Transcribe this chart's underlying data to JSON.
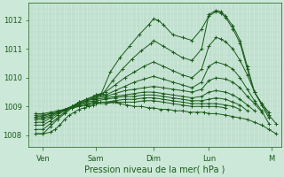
{
  "title": "",
  "xlabel": "Pression niveau de la mer( hPa )",
  "bg_color": "#cce8d8",
  "grid_color_v": "#aacfbe",
  "grid_color_h": "#b8d8c8",
  "line_color": "#1a5c1a",
  "xlim": [
    0,
    105
  ],
  "ylim": [
    1007.6,
    1012.6
  ],
  "yticks": [
    1008,
    1009,
    1010,
    1011,
    1012
  ],
  "ytick_labels": [
    "1008",
    "1009",
    "1010",
    "1011",
    "1012"
  ],
  "xtick_labels": [
    "Ven",
    "Sam",
    "Dim",
    "Lun",
    "M"
  ],
  "xtick_positions": [
    6,
    28,
    52,
    75,
    101
  ],
  "series": [
    [
      [
        3,
        1008.05
      ],
      [
        6,
        1008.05
      ],
      [
        9,
        1008.3
      ],
      [
        12,
        1008.55
      ],
      [
        15,
        1008.75
      ],
      [
        18,
        1008.95
      ],
      [
        21,
        1009.1
      ],
      [
        24,
        1009.2
      ],
      [
        27,
        1009.3
      ],
      [
        28,
        1009.35
      ],
      [
        30,
        1009.4
      ],
      [
        34,
        1010.2
      ],
      [
        38,
        1010.7
      ],
      [
        42,
        1011.1
      ],
      [
        46,
        1011.5
      ],
      [
        50,
        1011.85
      ],
      [
        52,
        1012.05
      ],
      [
        54,
        1012.0
      ],
      [
        56,
        1011.85
      ],
      [
        60,
        1011.5
      ],
      [
        64,
        1011.4
      ],
      [
        68,
        1011.3
      ],
      [
        72,
        1011.7
      ],
      [
        75,
        1012.15
      ],
      [
        78,
        1012.3
      ],
      [
        80,
        1012.25
      ],
      [
        82,
        1012.1
      ],
      [
        85,
        1011.7
      ],
      [
        88,
        1011.2
      ],
      [
        91,
        1010.3
      ],
      [
        94,
        1009.5
      ],
      [
        97,
        1009.1
      ],
      [
        100,
        1008.7
      ],
      [
        103,
        1008.4
      ]
    ],
    [
      [
        3,
        1008.2
      ],
      [
        6,
        1008.2
      ],
      [
        9,
        1008.4
      ],
      [
        12,
        1008.6
      ],
      [
        15,
        1008.8
      ],
      [
        18,
        1009.0
      ],
      [
        21,
        1009.15
      ],
      [
        24,
        1009.25
      ],
      [
        27,
        1009.35
      ],
      [
        28,
        1009.4
      ],
      [
        31,
        1009.45
      ],
      [
        35,
        1009.9
      ],
      [
        39,
        1010.3
      ],
      [
        43,
        1010.65
      ],
      [
        47,
        1010.95
      ],
      [
        51,
        1011.2
      ],
      [
        52,
        1011.3
      ],
      [
        56,
        1011.1
      ],
      [
        60,
        1010.9
      ],
      [
        64,
        1010.7
      ],
      [
        68,
        1010.6
      ],
      [
        72,
        1011.0
      ],
      [
        75,
        1012.2
      ],
      [
        78,
        1012.35
      ],
      [
        80,
        1012.3
      ],
      [
        82,
        1012.15
      ],
      [
        85,
        1011.8
      ],
      [
        88,
        1011.3
      ],
      [
        91,
        1010.4
      ],
      [
        94,
        1009.5
      ],
      [
        97,
        1009.1
      ],
      [
        100,
        1008.8
      ]
    ],
    [
      [
        3,
        1008.35
      ],
      [
        6,
        1008.35
      ],
      [
        9,
        1008.5
      ],
      [
        12,
        1008.7
      ],
      [
        15,
        1008.85
      ],
      [
        18,
        1009.0
      ],
      [
        21,
        1009.15
      ],
      [
        24,
        1009.25
      ],
      [
        27,
        1009.35
      ],
      [
        28,
        1009.4
      ],
      [
        32,
        1009.5
      ],
      [
        36,
        1009.75
      ],
      [
        40,
        1010.0
      ],
      [
        44,
        1010.2
      ],
      [
        48,
        1010.4
      ],
      [
        52,
        1010.55
      ],
      [
        56,
        1010.4
      ],
      [
        60,
        1010.25
      ],
      [
        64,
        1010.1
      ],
      [
        68,
        1010.0
      ],
      [
        72,
        1010.3
      ],
      [
        75,
        1011.1
      ],
      [
        78,
        1011.4
      ],
      [
        80,
        1011.35
      ],
      [
        82,
        1011.25
      ],
      [
        85,
        1011.0
      ],
      [
        88,
        1010.6
      ],
      [
        91,
        1010.1
      ],
      [
        94,
        1009.5
      ],
      [
        97,
        1009.05
      ],
      [
        100,
        1008.6
      ]
    ],
    [
      [
        3,
        1008.45
      ],
      [
        6,
        1008.45
      ],
      [
        9,
        1008.6
      ],
      [
        12,
        1008.75
      ],
      [
        15,
        1008.9
      ],
      [
        18,
        1009.0
      ],
      [
        21,
        1009.1
      ],
      [
        24,
        1009.2
      ],
      [
        27,
        1009.3
      ],
      [
        28,
        1009.35
      ],
      [
        32,
        1009.4
      ],
      [
        36,
        1009.55
      ],
      [
        40,
        1009.7
      ],
      [
        44,
        1009.85
      ],
      [
        48,
        1009.95
      ],
      [
        52,
        1010.05
      ],
      [
        56,
        1009.95
      ],
      [
        60,
        1009.85
      ],
      [
        64,
        1009.75
      ],
      [
        68,
        1009.65
      ],
      [
        72,
        1009.85
      ],
      [
        75,
        1010.4
      ],
      [
        78,
        1010.55
      ],
      [
        82,
        1010.45
      ],
      [
        85,
        1010.3
      ],
      [
        88,
        1010.0
      ],
      [
        91,
        1009.6
      ],
      [
        94,
        1009.2
      ],
      [
        97,
        1008.85
      ],
      [
        100,
        1008.4
      ]
    ],
    [
      [
        3,
        1008.55
      ],
      [
        6,
        1008.55
      ],
      [
        9,
        1008.65
      ],
      [
        12,
        1008.8
      ],
      [
        15,
        1008.9
      ],
      [
        18,
        1009.0
      ],
      [
        21,
        1009.1
      ],
      [
        24,
        1009.2
      ],
      [
        27,
        1009.25
      ],
      [
        28,
        1009.3
      ],
      [
        32,
        1009.35
      ],
      [
        36,
        1009.45
      ],
      [
        40,
        1009.55
      ],
      [
        44,
        1009.6
      ],
      [
        48,
        1009.65
      ],
      [
        52,
        1009.7
      ],
      [
        56,
        1009.65
      ],
      [
        60,
        1009.6
      ],
      [
        64,
        1009.55
      ],
      [
        68,
        1009.5
      ],
      [
        72,
        1009.6
      ],
      [
        75,
        1009.9
      ],
      [
        78,
        1010.0
      ],
      [
        82,
        1009.95
      ],
      [
        85,
        1009.85
      ],
      [
        88,
        1009.65
      ],
      [
        91,
        1009.35
      ],
      [
        94,
        1009.1
      ],
      [
        97,
        1008.8
      ]
    ],
    [
      [
        3,
        1008.6
      ],
      [
        6,
        1008.6
      ],
      [
        9,
        1008.7
      ],
      [
        12,
        1008.8
      ],
      [
        15,
        1008.9
      ],
      [
        18,
        1009.0
      ],
      [
        21,
        1009.05
      ],
      [
        24,
        1009.15
      ],
      [
        27,
        1009.2
      ],
      [
        28,
        1009.25
      ],
      [
        32,
        1009.3
      ],
      [
        36,
        1009.35
      ],
      [
        40,
        1009.4
      ],
      [
        44,
        1009.45
      ],
      [
        48,
        1009.5
      ],
      [
        52,
        1009.5
      ],
      [
        56,
        1009.45
      ],
      [
        60,
        1009.4
      ],
      [
        64,
        1009.35
      ],
      [
        68,
        1009.3
      ],
      [
        72,
        1009.35
      ],
      [
        75,
        1009.5
      ],
      [
        78,
        1009.55
      ],
      [
        82,
        1009.5
      ],
      [
        85,
        1009.4
      ],
      [
        88,
        1009.25
      ],
      [
        91,
        1009.05
      ],
      [
        94,
        1008.85
      ]
    ],
    [
      [
        3,
        1008.65
      ],
      [
        6,
        1008.65
      ],
      [
        9,
        1008.75
      ],
      [
        12,
        1008.8
      ],
      [
        15,
        1008.9
      ],
      [
        18,
        1008.95
      ],
      [
        21,
        1009.05
      ],
      [
        24,
        1009.1
      ],
      [
        27,
        1009.15
      ],
      [
        28,
        1009.2
      ],
      [
        32,
        1009.25
      ],
      [
        36,
        1009.3
      ],
      [
        40,
        1009.35
      ],
      [
        44,
        1009.35
      ],
      [
        48,
        1009.4
      ],
      [
        52,
        1009.4
      ],
      [
        56,
        1009.35
      ],
      [
        60,
        1009.3
      ],
      [
        64,
        1009.25
      ],
      [
        68,
        1009.2
      ],
      [
        72,
        1009.2
      ],
      [
        75,
        1009.25
      ],
      [
        78,
        1009.3
      ],
      [
        82,
        1009.25
      ],
      [
        85,
        1009.15
      ],
      [
        88,
        1009.05
      ],
      [
        91,
        1008.85
      ]
    ],
    [
      [
        3,
        1008.7
      ],
      [
        6,
        1008.7
      ],
      [
        9,
        1008.75
      ],
      [
        12,
        1008.8
      ],
      [
        15,
        1008.85
      ],
      [
        18,
        1008.95
      ],
      [
        21,
        1009.0
      ],
      [
        24,
        1009.05
      ],
      [
        27,
        1009.1
      ],
      [
        28,
        1009.15
      ],
      [
        32,
        1009.15
      ],
      [
        36,
        1009.2
      ],
      [
        40,
        1009.25
      ],
      [
        44,
        1009.25
      ],
      [
        48,
        1009.3
      ],
      [
        52,
        1009.3
      ],
      [
        56,
        1009.25
      ],
      [
        60,
        1009.2
      ],
      [
        64,
        1009.15
      ],
      [
        68,
        1009.1
      ],
      [
        72,
        1009.1
      ],
      [
        75,
        1009.1
      ],
      [
        78,
        1009.1
      ],
      [
        82,
        1009.05
      ],
      [
        85,
        1009.0
      ],
      [
        88,
        1008.9
      ]
    ],
    [
      [
        3,
        1008.75
      ],
      [
        6,
        1008.75
      ],
      [
        9,
        1008.8
      ],
      [
        12,
        1008.85
      ],
      [
        15,
        1008.9
      ],
      [
        18,
        1008.95
      ],
      [
        21,
        1009.0
      ],
      [
        24,
        1009.05
      ],
      [
        27,
        1009.1
      ],
      [
        28,
        1009.1
      ],
      [
        32,
        1009.1
      ],
      [
        36,
        1009.15
      ],
      [
        40,
        1009.15
      ],
      [
        44,
        1009.15
      ],
      [
        48,
        1009.2
      ],
      [
        52,
        1009.2
      ],
      [
        56,
        1009.15
      ],
      [
        60,
        1009.1
      ],
      [
        64,
        1009.05
      ],
      [
        68,
        1009.0
      ],
      [
        72,
        1009.0
      ],
      [
        75,
        1009.0
      ],
      [
        78,
        1009.0
      ],
      [
        82,
        1008.95
      ]
    ],
    [
      [
        3,
        1008.05
      ],
      [
        6,
        1008.05
      ],
      [
        9,
        1008.1
      ],
      [
        11,
        1008.2
      ],
      [
        13,
        1008.35
      ],
      [
        15,
        1008.55
      ],
      [
        17,
        1008.7
      ],
      [
        19,
        1008.8
      ],
      [
        21,
        1008.9
      ],
      [
        23,
        1008.95
      ],
      [
        25,
        1009.0
      ],
      [
        27,
        1009.05
      ],
      [
        28,
        1009.1
      ],
      [
        30,
        1009.15
      ],
      [
        32,
        1009.15
      ],
      [
        35,
        1009.15
      ],
      [
        38,
        1009.1
      ],
      [
        41,
        1009.05
      ],
      [
        44,
        1009.0
      ],
      [
        47,
        1009.0
      ],
      [
        50,
        1008.95
      ],
      [
        52,
        1008.95
      ],
      [
        55,
        1008.9
      ],
      [
        58,
        1008.9
      ],
      [
        61,
        1008.85
      ],
      [
        64,
        1008.85
      ],
      [
        67,
        1008.8
      ],
      [
        70,
        1008.8
      ],
      [
        73,
        1008.8
      ],
      [
        75,
        1008.75
      ],
      [
        78,
        1008.75
      ],
      [
        82,
        1008.7
      ],
      [
        85,
        1008.65
      ],
      [
        88,
        1008.6
      ],
      [
        91,
        1008.55
      ],
      [
        94,
        1008.45
      ],
      [
        97,
        1008.35
      ],
      [
        100,
        1008.2
      ],
      [
        103,
        1008.05
      ]
    ]
  ]
}
